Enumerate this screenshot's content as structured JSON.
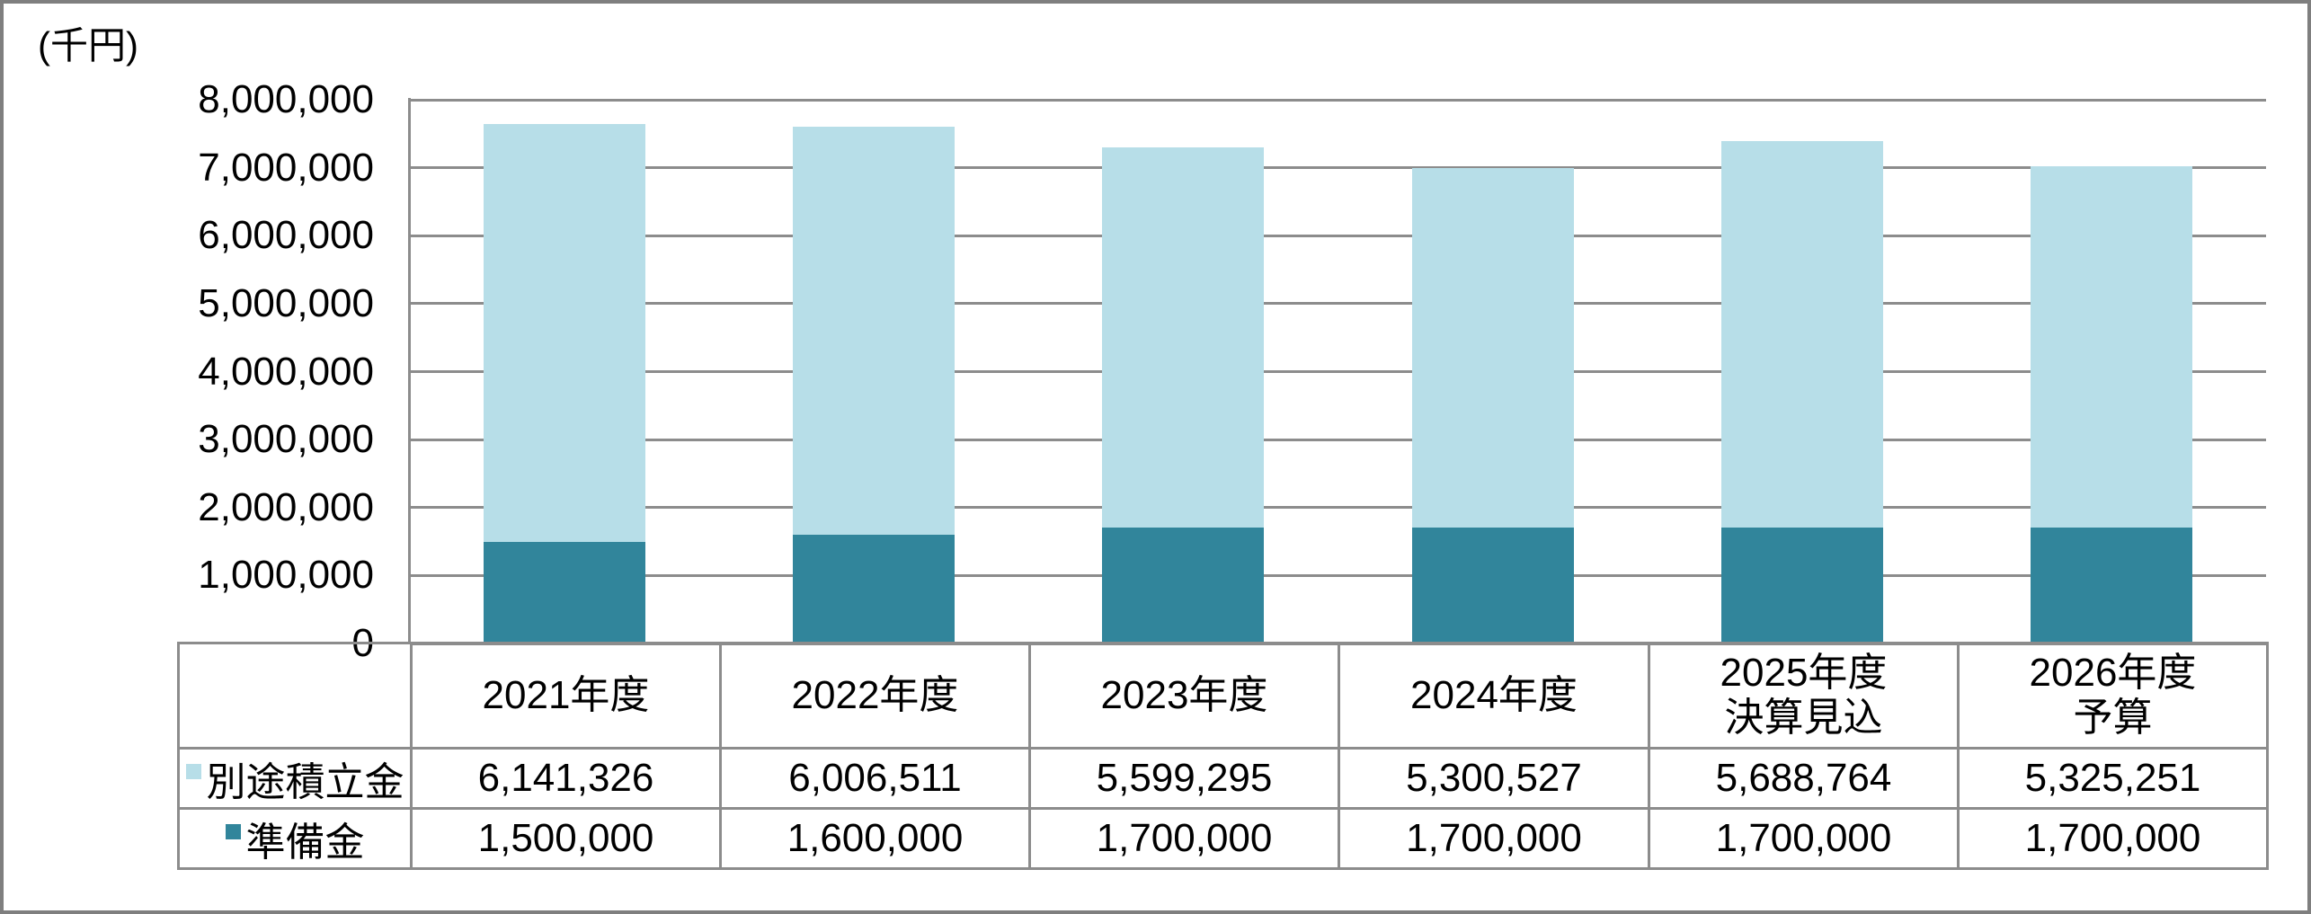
{
  "chart_data": {
    "type": "bar",
    "stacked": true,
    "title": "",
    "unit_label": "(千円)",
    "xlabel": "",
    "ylabel": "(千円)",
    "categories": [
      "2021年度",
      "2022年度",
      "2023年度",
      "2024年度",
      "2025年度\n決算見込",
      "2026年度\n予算"
    ],
    "series": [
      {
        "name": "別途積立金",
        "color": "#b7dee8",
        "values": [
          6141326,
          6006511,
          5599295,
          5300527,
          5688764,
          5325251
        ]
      },
      {
        "name": "準備金",
        "color": "#31859b",
        "values": [
          1500000,
          1600000,
          1700000,
          1700000,
          1700000,
          1700000
        ]
      }
    ],
    "stack_order_bottom_to_top": [
      "準備金",
      "別途積立金"
    ],
    "ylim": [
      0,
      8000000
    ],
    "ytick_interval": 1000000,
    "ytick_labels_top_to_bottom": [
      "8,000,000",
      "7,000,000",
      "6,000,000",
      "5,000,000",
      "4,000,000",
      "3,000,000",
      "2,000,000",
      "1,000,000",
      "0"
    ],
    "grid": true,
    "legend_position": "table-left",
    "data_table": {
      "rows": [
        {
          "label": "別途積立金",
          "swatch_color": "#b7dee8",
          "values": [
            "6,141,326",
            "6,006,511",
            "5,599,295",
            "5,300,527",
            "5,688,764",
            "5,325,251"
          ]
        },
        {
          "label": "準備金",
          "swatch_color": "#31859b",
          "values": [
            "1,500,000",
            "1,600,000",
            "1,700,000",
            "1,700,000",
            "1,700,000",
            "1,700,000"
          ]
        }
      ]
    }
  }
}
